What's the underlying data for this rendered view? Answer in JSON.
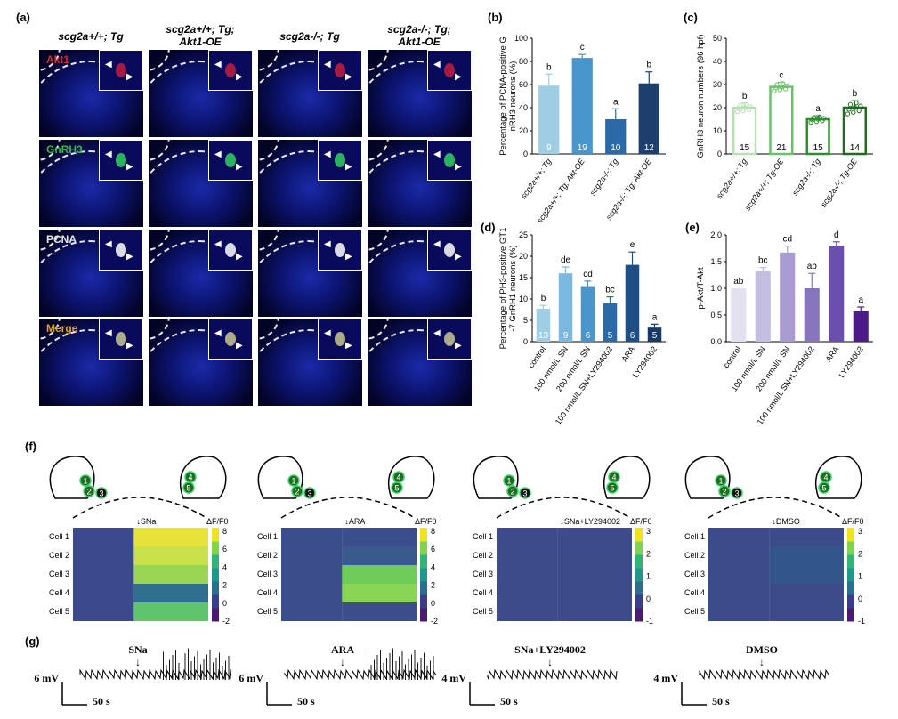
{
  "panels": {
    "a": "(a)",
    "b": "(b)",
    "c": "(c)",
    "d": "(d)",
    "e": "(e)",
    "f": "(f)",
    "g": "(g)"
  },
  "panel_a": {
    "columns": [
      {
        "line1": "scg2a+/+; Tg",
        "line2": ""
      },
      {
        "line1": "scg2a+/+; Tg;",
        "line2": "Akt1-OE"
      },
      {
        "line1": "scg2a-/-; Tg",
        "line2": ""
      },
      {
        "line1": "scg2a-/-; Tg;",
        "line2": "Akt1-OE"
      }
    ],
    "rows": [
      {
        "label": "Akt1",
        "color": "#d62b2b"
      },
      {
        "label": "GnRH3",
        "color": "#2fb84a"
      },
      {
        "label": "PCNA",
        "color": "#e6e6e6"
      },
      {
        "label": "Merge",
        "color": "#e3a21a"
      }
    ]
  },
  "chart_data": [
    {
      "id": "b",
      "type": "bar",
      "ylabel": "Percentage of PCNA-positive GnRH3 neurons (%)",
      "ylim": [
        0,
        100
      ],
      "yticks": [
        0,
        20,
        40,
        60,
        80,
        100
      ],
      "categories": [
        "scg2a+/+; Tg",
        "scg2a+/+; Tg; Akt-OE",
        "scg2a-/-; Tg",
        "scg2a-/-; Tg; Akt-OE"
      ],
      "values": [
        59,
        83,
        30,
        61
      ],
      "errors": [
        10,
        3,
        9,
        10
      ],
      "letters": [
        "b",
        "c",
        "a",
        "b"
      ],
      "n": [
        "9",
        "19",
        "10",
        "12"
      ],
      "colors": [
        "#9fcde3",
        "#4a96cc",
        "#2b6aa6",
        "#1d3f6e"
      ]
    },
    {
      "id": "c",
      "type": "bar",
      "ylabel": "GnRH3 neuron numbers (96 hpf)",
      "ylim": [
        0,
        50
      ],
      "yticks": [
        0,
        10,
        20,
        30,
        40,
        50
      ],
      "categories": [
        "scg2a+/+; Tg",
        "scg2a+/+; Tg-OE",
        "scg2a-/-; Tg",
        "scg2a-/-; Tg-OE"
      ],
      "values": [
        20,
        29,
        15,
        20
      ],
      "errors": [
        2,
        2,
        1.5,
        3
      ],
      "letters": [
        "b",
        "c",
        "a",
        "b"
      ],
      "n": [
        "15",
        "21",
        "15",
        "14"
      ],
      "colors": [
        "#b8e0b4",
        "#6cc06c",
        "#2e8f2e",
        "#1f6b1f"
      ]
    },
    {
      "id": "d",
      "type": "bar",
      "ylabel": "Percentage of PH3-positive GT1-7 GnRH1 neurons (%)",
      "ylim": [
        0,
        25
      ],
      "yticks": [
        0,
        5,
        10,
        15,
        20,
        25
      ],
      "categories": [
        "control",
        "100 nmol/L SN",
        "200 nmol/L SN",
        "100 nmol/L SN+LY294002",
        "ARA",
        "LY294002"
      ],
      "values": [
        7.7,
        16,
        13,
        9,
        18,
        3.3
      ],
      "errors": [
        0.8,
        1.5,
        1.2,
        1.5,
        3,
        0.8
      ],
      "letters": [
        "b",
        "de",
        "cd",
        "bc",
        "e",
        "a"
      ],
      "n": [
        "13",
        "9",
        "6",
        "5",
        "6",
        "5"
      ],
      "colors": [
        "#9fcde3",
        "#7ab8e0",
        "#4a96cc",
        "#2b6aa6",
        "#1d4f86",
        "#163a63"
      ]
    },
    {
      "id": "e",
      "type": "bar",
      "ylabel": "p-Akt/T-Akt",
      "ylim": [
        0,
        2.0
      ],
      "yticks": [
        "0.0",
        "0.5",
        "1.0",
        "1.5",
        "2.0"
      ],
      "categories": [
        "control",
        "100 nmol/L SN",
        "200 nmol/L SN",
        "100 nmol/L SN+LY294002",
        "ARA",
        "LY294002"
      ],
      "values": [
        1.0,
        1.33,
        1.67,
        1.0,
        1.8,
        0.57
      ],
      "errors": [
        0,
        0.06,
        0.12,
        0.28,
        0.07,
        0.08
      ],
      "letters": [
        "ab",
        "bc",
        "cd",
        "ab",
        "d",
        "a"
      ],
      "colors": [
        "#e3e0f0",
        "#c3bde0",
        "#a79bd1",
        "#8674bd",
        "#6a4fae",
        "#4d1a8a"
      ]
    },
    {
      "id": "f",
      "type": "heatmap",
      "traces": [
        {
          "stimulus": "SNa",
          "cells": [
            "Cell 1",
            "Cell 2",
            "Cell 3",
            "Cell 4",
            "Cell 5"
          ],
          "colorbar_label": "ΔF/F0",
          "colorbar_ticks": [
            "8",
            "6",
            "4",
            "2",
            "0",
            "-2"
          ]
        },
        {
          "stimulus": "ARA",
          "cells": [
            "Cell 1",
            "Cell 2",
            "Cell 3",
            "Cell 4",
            "Cell 5"
          ],
          "colorbar_label": "ΔF/F0",
          "colorbar_ticks": [
            "8",
            "6",
            "4",
            "2",
            "0",
            "-2"
          ]
        },
        {
          "stimulus": "SNa+LY294002",
          "cells": [
            "Cell 1",
            "Cell 2",
            "Cell 3",
            "Cell 4",
            "Cell 5"
          ],
          "colorbar_label": "ΔF/F0",
          "colorbar_ticks": [
            "3",
            "2",
            "1",
            "0",
            "-1"
          ]
        },
        {
          "stimulus": "DMSO",
          "cells": [
            "Cell 1",
            "Cell 2",
            "Cell 3",
            "Cell 4",
            "Cell 5"
          ],
          "colorbar_label": "ΔF/F0",
          "colorbar_ticks": [
            "3",
            "2",
            "1",
            "0",
            "-1"
          ]
        }
      ]
    }
  ],
  "panel_g": [
    {
      "stimulus": "SNa",
      "scale_mv": "6 mV",
      "scale_time": "50 s"
    },
    {
      "stimulus": "ARA",
      "scale_mv": "6 mV",
      "scale_time": "50 s"
    },
    {
      "stimulus": "SNa+LY294002",
      "scale_mv": "4 mV",
      "scale_time": "50 s"
    },
    {
      "stimulus": "DMSO",
      "scale_mv": "4 mV",
      "scale_time": "50 s"
    }
  ]
}
